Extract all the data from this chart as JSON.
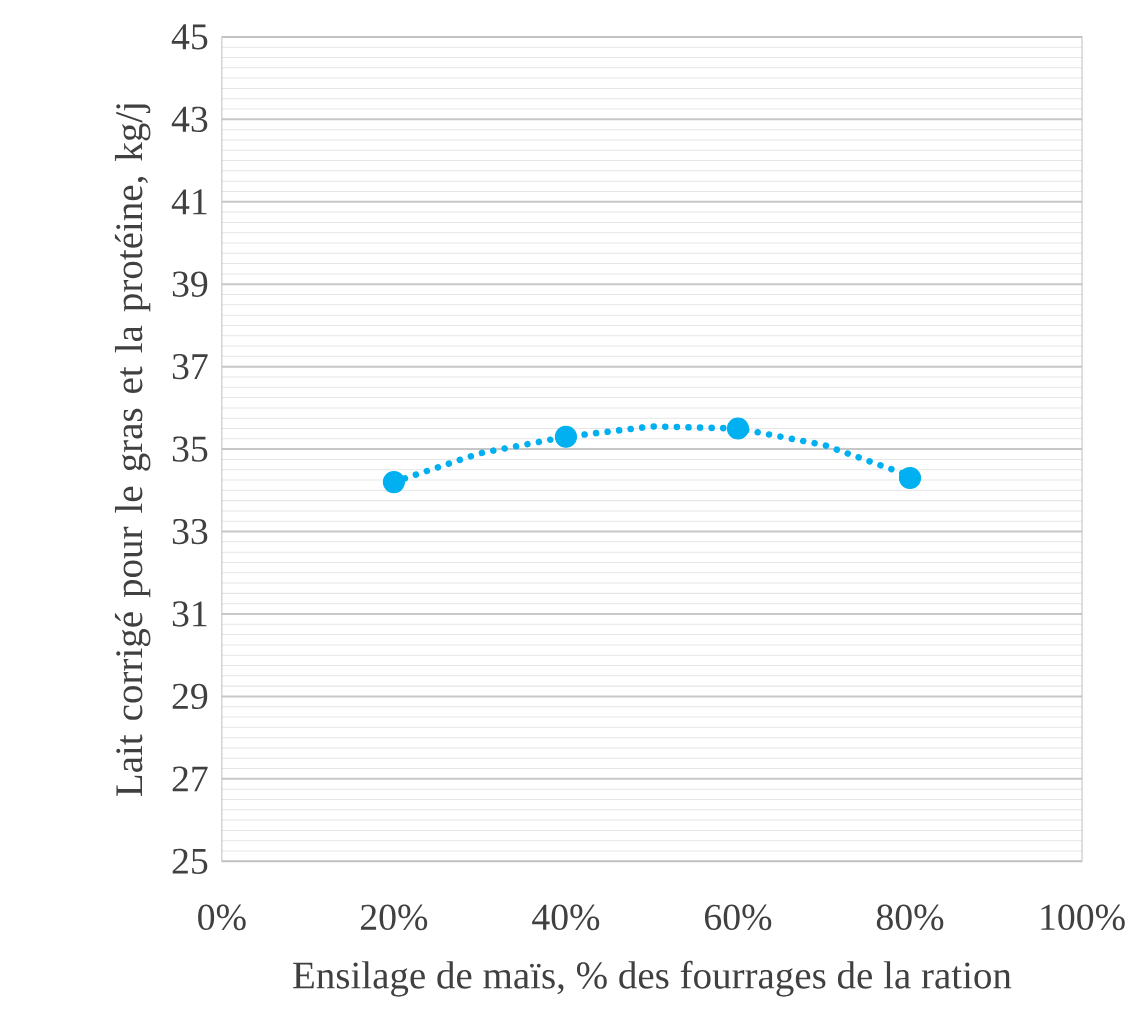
{
  "chart_data": {
    "type": "scatter",
    "xlabel": "Ensilage de maïs, % des fourrages de la ration",
    "ylabel": "Lait corrigé pour le gras et la protéine, kg/j",
    "xlim": [
      0,
      100
    ],
    "xticks": [
      {
        "value": 0,
        "label": "0%"
      },
      {
        "value": 20,
        "label": "20%"
      },
      {
        "value": 40,
        "label": "40%"
      },
      {
        "value": 60,
        "label": "60%"
      },
      {
        "value": 80,
        "label": "80%"
      },
      {
        "value": 100,
        "label": "100%"
      }
    ],
    "ylim": [
      25,
      45
    ],
    "yticks": [
      25,
      27,
      29,
      31,
      33,
      35,
      37,
      39,
      41,
      43,
      45
    ],
    "grid": "y",
    "series": [
      {
        "color": "#00b0f0",
        "marker": "circle",
        "x": [
          20,
          40,
          60,
          80
        ],
        "values": [
          34.2,
          35.3,
          35.5,
          34.3
        ]
      },
      {
        "type": "line",
        "color": "#00b0f0",
        "marker": "none",
        "line_style": "dotted",
        "x": [
          20,
          30,
          40,
          50,
          60,
          70,
          80
        ],
        "values": [
          34.2,
          34.9,
          35.3,
          35.55,
          35.5,
          35.1,
          34.35
        ]
      }
    ]
  }
}
